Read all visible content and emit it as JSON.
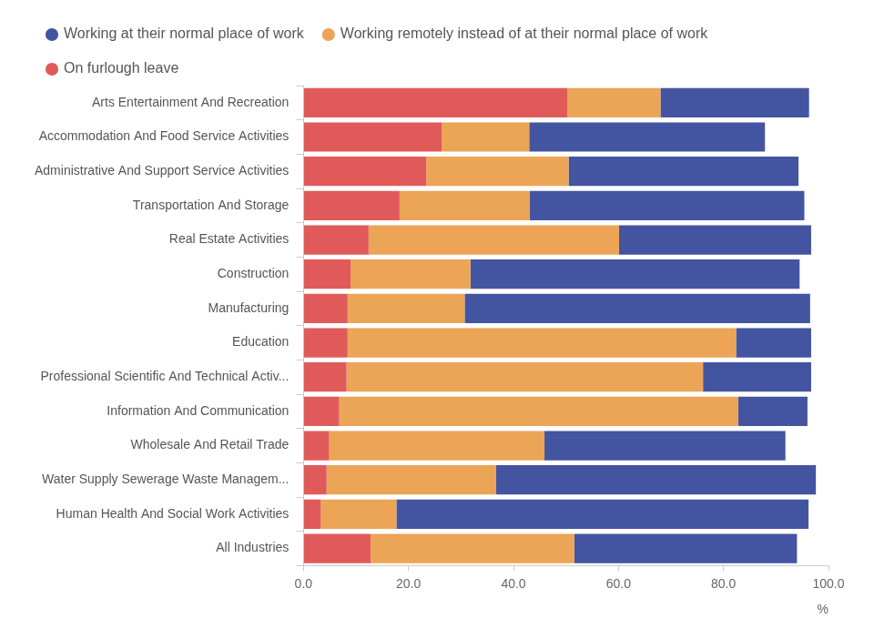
{
  "chart_data": {
    "type": "bar",
    "orientation": "horizontal",
    "stacked": true,
    "grid": false,
    "legend": "top-left",
    "x_label": "%",
    "categories": [
      "Arts Entertainment And Recreation",
      "Accommodation And Food Service Activities",
      "Administrative And Support Service Activities",
      "Transportation And Storage",
      "Real Estate Activities",
      "Construction",
      "Manufacturing",
      "Education",
      "Professional Scientific And Technical Activ...",
      "Information And Communication",
      "Wholesale And Retail Trade",
      "Water Supply Sewerage Waste Managem...",
      "Human Health And Social Work Activities",
      "All Industries"
    ],
    "series": [
      {
        "name": "Working at their normal place of work",
        "color": "#4355a0",
        "values": [
          28.3,
          44.9,
          43.8,
          52.3,
          36.6,
          62.7,
          65.8,
          14.3,
          20.6,
          13.2,
          45.9,
          60.9,
          78.5,
          42.4
        ]
      },
      {
        "name": "Working remotely instead of at their normal place of work",
        "color": "#eca456",
        "values": [
          17.7,
          16.7,
          27.1,
          24.8,
          47.7,
          22.8,
          22.3,
          74.0,
          67.9,
          76.0,
          41.0,
          32.3,
          14.4,
          38.8
        ]
      },
      {
        "name": "On furlough leave",
        "color": "#e05a5a",
        "values": [
          50.3,
          26.3,
          23.4,
          18.3,
          12.4,
          9.0,
          8.4,
          8.4,
          8.2,
          6.8,
          4.9,
          4.4,
          3.3,
          12.8
        ]
      }
    ],
    "xlim": [
      0,
      100
    ],
    "xticks": [
      {
        "value": 0,
        "label": "0.0"
      },
      {
        "value": 20,
        "label": "20.0"
      },
      {
        "value": 40,
        "label": "40.0"
      },
      {
        "value": 60,
        "label": "60.0"
      },
      {
        "value": 80,
        "label": "80.0"
      },
      {
        "value": 100,
        "label": "100.0"
      }
    ]
  }
}
